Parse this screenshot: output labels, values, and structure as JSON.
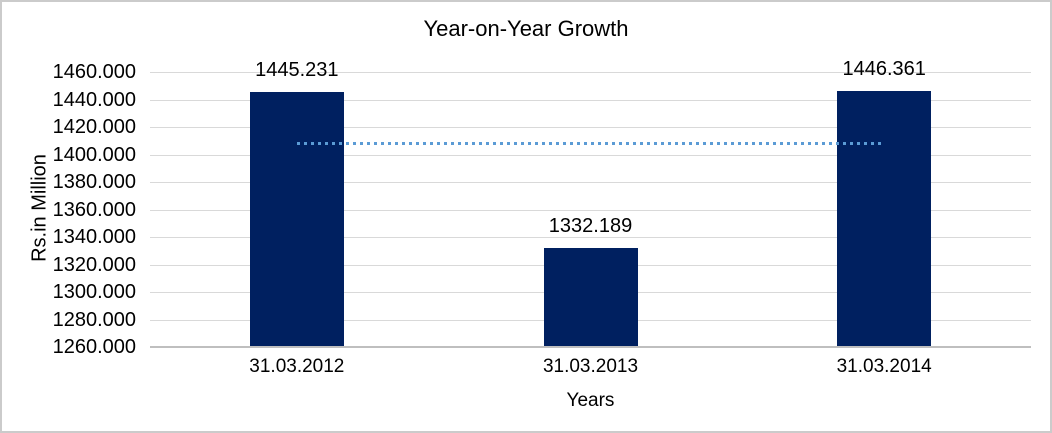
{
  "chart_data": {
    "type": "bar",
    "title": "Year-on-Year Growth",
    "xlabel": "Years",
    "ylabel": "Rs.in Million",
    "categories": [
      "31.03.2012",
      "31.03.2013",
      "31.03.2014"
    ],
    "values": [
      1445.231,
      1332.189,
      1446.361
    ],
    "data_labels": [
      "1445.231",
      "1332.189",
      "1446.361"
    ],
    "ylim": [
      1260,
      1460
    ],
    "ytick_step": 20,
    "yticks": [
      "1260.000",
      "1280.000",
      "1300.000",
      "1320.000",
      "1340.000",
      "1360.000",
      "1380.000",
      "1400.000",
      "1420.000",
      "1440.000",
      "1460.000"
    ],
    "grid": true,
    "legend": "none",
    "bar_color": "#002060",
    "gridline_color": "#d9d9d9",
    "axis_line_color": "#bfbfbf",
    "text_color": "#000000",
    "trendline": {
      "type": "average",
      "value": 1407.927,
      "color": "#5b9bd5",
      "style": "dotted"
    }
  }
}
